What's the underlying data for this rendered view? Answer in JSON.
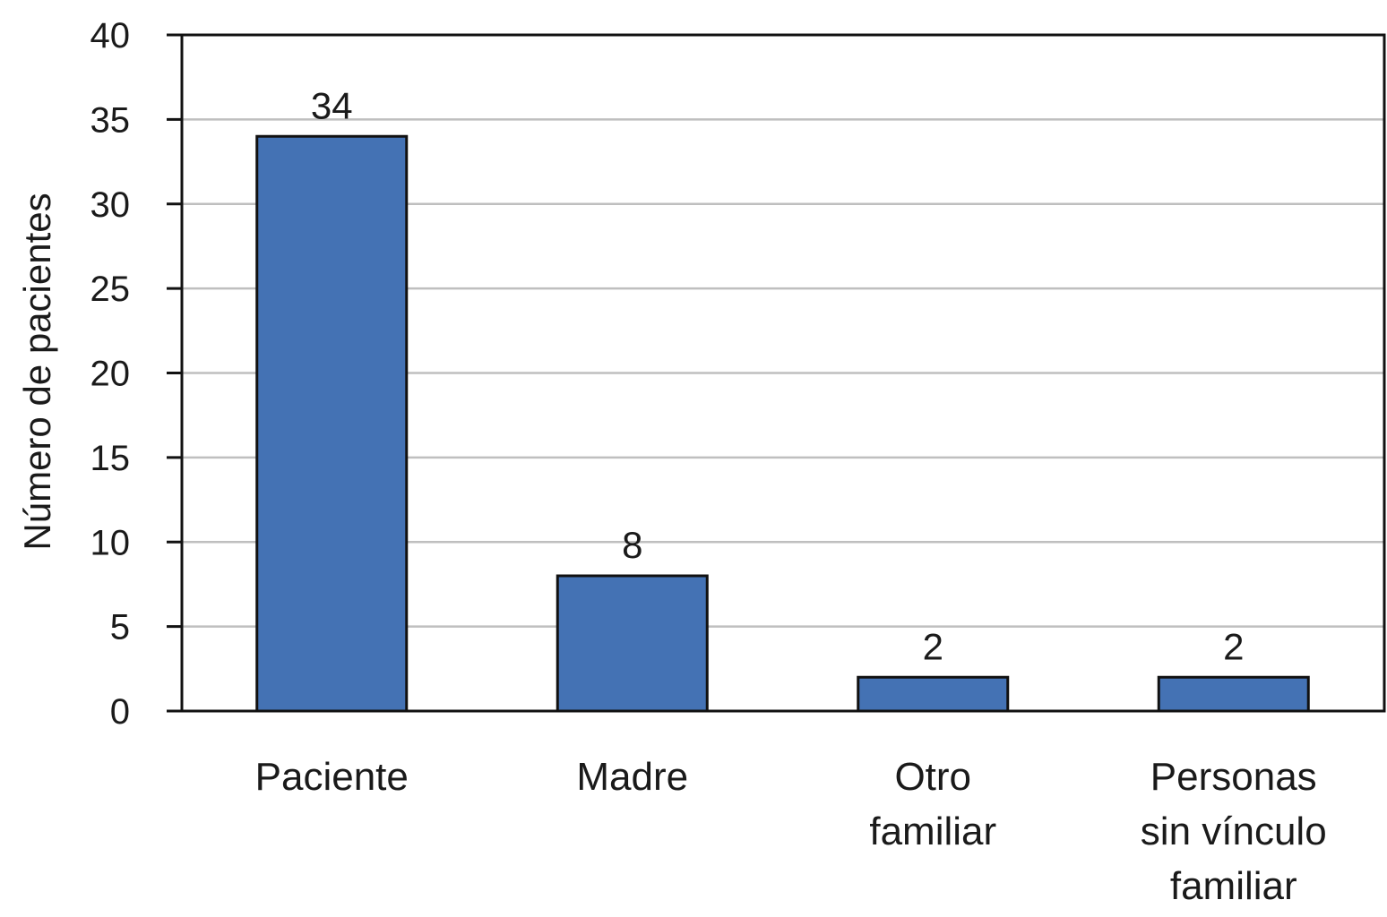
{
  "chart_data": {
    "type": "bar",
    "title": "",
    "xlabel": "",
    "ylabel": "Número de pacientes",
    "categories": [
      [
        "Paciente"
      ],
      [
        "Madre"
      ],
      [
        "Otro",
        "familiar"
      ],
      [
        "Personas",
        "sin vínculo",
        "familiar"
      ]
    ],
    "values": [
      34,
      8,
      2,
      2
    ],
    "data_labels": [
      "34",
      "8",
      "2",
      "2"
    ],
    "ylim": [
      0,
      40
    ],
    "yticks": [
      0,
      5,
      10,
      15,
      20,
      25,
      30,
      35,
      40
    ],
    "grid": true,
    "legend": "none",
    "bar_color": "#4472b4"
  }
}
